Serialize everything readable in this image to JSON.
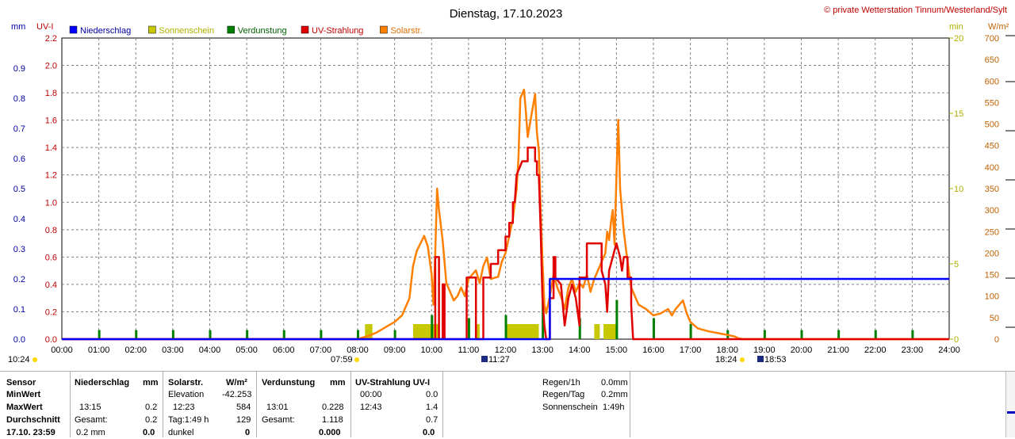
{
  "header": {
    "title": "Dienstag, 17.10.2023",
    "copyright": "© private Wetterstation Tinnum/Westerland/Sylt"
  },
  "axes": {
    "left_unit_mm": "mm",
    "left_unit_uv": "UV-I",
    "right_unit_min": "min",
    "right_unit_wm2": "W/m²"
  },
  "colors": {
    "niederschlag": "#0000ff",
    "sonnenschein": "#c8c800",
    "verdunstung": "#008000",
    "uv": "#e00000",
    "solar": "#ff8000",
    "grid": "#808080",
    "mm_axis": "#0000a0",
    "uv_axis": "#c00000",
    "min_axis": "#b0b000",
    "wm2_axis": "#c06000"
  },
  "legend": [
    {
      "key": "niederschlag",
      "label": "Niederschlag"
    },
    {
      "key": "sonnenschein",
      "label": "Sonnenschein"
    },
    {
      "key": "verdunstung",
      "label": "Verdunstung"
    },
    {
      "key": "uv",
      "label": "UV-Strahlung"
    },
    {
      "key": "solar",
      "label": "Solarstr."
    }
  ],
  "sun_markers": {
    "sunrise_left": "10:24",
    "sunrise": "07:59",
    "noon": "11:27",
    "sunset": "18:24",
    "moon": "18:53"
  },
  "chart_data": {
    "type": "line",
    "x_range_hours": [
      0,
      24
    ],
    "x_ticks": [
      "00:00",
      "01:00",
      "02:00",
      "03:00",
      "04:00",
      "05:00",
      "06:00",
      "07:00",
      "08:00",
      "09:00",
      "10:00",
      "11:00",
      "12:00",
      "13:00",
      "14:00",
      "15:00",
      "16:00",
      "17:00",
      "18:00",
      "19:00",
      "20:00",
      "21:00",
      "22:00",
      "23:00",
      "24:00"
    ],
    "y_axes": {
      "mm": {
        "range": [
          0,
          1.0
        ],
        "ticks": [
          "0.0",
          "0.1",
          "0.2",
          "0.3",
          "0.4",
          "0.5",
          "0.6",
          "0.7",
          "0.8",
          "0.9"
        ]
      },
      "uv": {
        "range": [
          0,
          2.2
        ],
        "ticks": [
          "0.0",
          "0.2",
          "0.4",
          "0.6",
          "0.8",
          "1.0",
          "1.2",
          "1.4",
          "1.6",
          "1.8",
          "2.0",
          "2.2"
        ]
      },
      "min": {
        "range": [
          0,
          20
        ],
        "ticks": [
          "0",
          "5",
          "10",
          "15",
          "20"
        ]
      },
      "wm2": {
        "range": [
          0,
          700
        ],
        "ticks": [
          "0",
          "50",
          "100",
          "150",
          "200",
          "250",
          "300",
          "350",
          "400",
          "450",
          "500",
          "550",
          "600",
          "650",
          "700"
        ]
      }
    },
    "grid": true,
    "legend_position": "top-left",
    "series": [
      {
        "name": "Niederschlag",
        "axis": "mm",
        "unit": "mm",
        "points": [
          [
            0,
            0
          ],
          [
            13.2,
            0
          ],
          [
            13.2,
            0.2
          ],
          [
            24,
            0.2
          ]
        ]
      },
      {
        "name": "UV-Strahlung",
        "axis": "uv",
        "unit": "UV-I",
        "points": [
          [
            0,
            0
          ],
          [
            10.1,
            0
          ],
          [
            10.1,
            0.6
          ],
          [
            10.2,
            0.6
          ],
          [
            10.2,
            0
          ],
          [
            10.3,
            0
          ],
          [
            10.3,
            0.4
          ],
          [
            10.35,
            0.4
          ],
          [
            10.35,
            0
          ],
          [
            10.95,
            0
          ],
          [
            10.95,
            0.45
          ],
          [
            11.2,
            0.45
          ],
          [
            11.2,
            0
          ],
          [
            11.4,
            0
          ],
          [
            11.4,
            0.45
          ],
          [
            11.6,
            0.45
          ],
          [
            11.6,
            0.55
          ],
          [
            11.8,
            0.55
          ],
          [
            11.8,
            0.65
          ],
          [
            12.0,
            0.65
          ],
          [
            12.0,
            0.75
          ],
          [
            12.1,
            0.75
          ],
          [
            12.1,
            0.85
          ],
          [
            12.2,
            0.85
          ],
          [
            12.2,
            1.0
          ],
          [
            12.25,
            1.0
          ],
          [
            12.3,
            1.2
          ],
          [
            12.45,
            1.3
          ],
          [
            12.45,
            1.3
          ],
          [
            12.6,
            1.3
          ],
          [
            12.6,
            1.4
          ],
          [
            12.8,
            1.4
          ],
          [
            12.8,
            1.3
          ],
          [
            12.85,
            1.3
          ],
          [
            12.85,
            1.2
          ],
          [
            12.9,
            1.2
          ],
          [
            12.95,
            0.8
          ],
          [
            13.0,
            0.3
          ],
          [
            13.05,
            0.1
          ],
          [
            13.1,
            0
          ],
          [
            13.2,
            0
          ],
          [
            13.2,
            0.3
          ],
          [
            13.3,
            0.3
          ],
          [
            13.3,
            0.6
          ],
          [
            13.35,
            0.6
          ],
          [
            13.35,
            0.45
          ],
          [
            13.5,
            0.4
          ],
          [
            13.6,
            0.1
          ],
          [
            13.7,
            0.3
          ],
          [
            13.8,
            0.4
          ],
          [
            13.9,
            0.3
          ],
          [
            14.0,
            0.1
          ],
          [
            14.0,
            0.45
          ],
          [
            14.2,
            0.45
          ],
          [
            14.2,
            0.7
          ],
          [
            14.6,
            0.7
          ],
          [
            14.6,
            0.5
          ],
          [
            14.7,
            0.4
          ],
          [
            14.75,
            0.2
          ],
          [
            14.8,
            0.5
          ],
          [
            14.9,
            0.6
          ],
          [
            15.0,
            0.7
          ],
          [
            15.1,
            0.6
          ],
          [
            15.15,
            0.5
          ],
          [
            15.2,
            0.6
          ],
          [
            15.3,
            0.6
          ],
          [
            15.3,
            0.45
          ],
          [
            15.4,
            0.45
          ],
          [
            15.4,
            0.25
          ],
          [
            15.45,
            0
          ],
          [
            24,
            0
          ]
        ]
      },
      {
        "name": "Solarstr.",
        "axis": "wm2",
        "unit": "W/m²",
        "points": [
          [
            0,
            0
          ],
          [
            8.0,
            0
          ],
          [
            8.3,
            8
          ],
          [
            8.5,
            15
          ],
          [
            8.8,
            30
          ],
          [
            9.0,
            40
          ],
          [
            9.2,
            55
          ],
          [
            9.4,
            95
          ],
          [
            9.5,
            170
          ],
          [
            9.6,
            205
          ],
          [
            9.8,
            240
          ],
          [
            9.9,
            215
          ],
          [
            10.0,
            150
          ],
          [
            10.05,
            80
          ],
          [
            10.1,
            200
          ],
          [
            10.15,
            350
          ],
          [
            10.2,
            300
          ],
          [
            10.3,
            230
          ],
          [
            10.4,
            130
          ],
          [
            10.5,
            110
          ],
          [
            10.6,
            90
          ],
          [
            10.7,
            100
          ],
          [
            10.8,
            120
          ],
          [
            10.9,
            100
          ],
          [
            11.0,
            140
          ],
          [
            11.1,
            150
          ],
          [
            11.2,
            160
          ],
          [
            11.3,
            130
          ],
          [
            11.4,
            170
          ],
          [
            11.5,
            190
          ],
          [
            11.6,
            140
          ],
          [
            11.8,
            145
          ],
          [
            11.9,
            180
          ],
          [
            12.0,
            200
          ],
          [
            12.1,
            240
          ],
          [
            12.2,
            280
          ],
          [
            12.3,
            350
          ],
          [
            12.35,
            420
          ],
          [
            12.4,
            560
          ],
          [
            12.5,
            580
          ],
          [
            12.55,
            530
          ],
          [
            12.6,
            470
          ],
          [
            12.7,
            520
          ],
          [
            12.8,
            570
          ],
          [
            12.85,
            480
          ],
          [
            12.9,
            440
          ],
          [
            12.95,
            300
          ],
          [
            13.0,
            180
          ],
          [
            13.05,
            80
          ],
          [
            13.1,
            60
          ],
          [
            13.2,
            100
          ],
          [
            13.3,
            150
          ],
          [
            13.4,
            120
          ],
          [
            13.5,
            100
          ],
          [
            13.6,
            70
          ],
          [
            13.7,
            120
          ],
          [
            13.8,
            140
          ],
          [
            13.9,
            110
          ],
          [
            14.0,
            130
          ],
          [
            14.1,
            120
          ],
          [
            14.2,
            150
          ],
          [
            14.3,
            110
          ],
          [
            14.4,
            140
          ],
          [
            14.5,
            160
          ],
          [
            14.6,
            180
          ],
          [
            14.7,
            200
          ],
          [
            14.75,
            250
          ],
          [
            14.8,
            230
          ],
          [
            14.85,
            270
          ],
          [
            14.9,
            300
          ],
          [
            14.95,
            220
          ],
          [
            15.0,
            380
          ],
          [
            15.05,
            510
          ],
          [
            15.1,
            350
          ],
          [
            15.2,
            250
          ],
          [
            15.3,
            180
          ],
          [
            15.4,
            120
          ],
          [
            15.6,
            80
          ],
          [
            15.8,
            70
          ],
          [
            16.0,
            55
          ],
          [
            16.2,
            60
          ],
          [
            16.4,
            70
          ],
          [
            16.5,
            55
          ],
          [
            16.6,
            70
          ],
          [
            16.7,
            80
          ],
          [
            16.8,
            90
          ],
          [
            16.9,
            60
          ],
          [
            17.0,
            40
          ],
          [
            17.2,
            25
          ],
          [
            17.5,
            18
          ],
          [
            18.0,
            10
          ],
          [
            18.2,
            6
          ],
          [
            18.3,
            2
          ],
          [
            18.4,
            0
          ],
          [
            24,
            0
          ]
        ]
      },
      {
        "name": "Sonnenschein",
        "axis": "min",
        "unit": "min",
        "bars": [
          [
            8.2,
            8.3,
            1
          ],
          [
            8.3,
            8.4,
            1
          ],
          [
            9.5,
            10.2,
            1
          ],
          [
            11.2,
            11.3,
            1
          ],
          [
            12.0,
            12.9,
            1
          ],
          [
            14.4,
            14.55,
            1
          ],
          [
            14.65,
            15.0,
            1
          ]
        ]
      },
      {
        "name": "Verdunstung",
        "axis": "mm",
        "unit": "mm",
        "spikes": [
          [
            1.0,
            0.03
          ],
          [
            2.0,
            0.03
          ],
          [
            3.0,
            0.03
          ],
          [
            4.0,
            0.03
          ],
          [
            5.0,
            0.03
          ],
          [
            6.0,
            0.03
          ],
          [
            7.0,
            0.03
          ],
          [
            8.0,
            0.03
          ],
          [
            9.0,
            0.03
          ],
          [
            10.0,
            0.08
          ],
          [
            11.0,
            0.07
          ],
          [
            12.0,
            0.08
          ],
          [
            13.0,
            0.22
          ],
          [
            14.0,
            0.07
          ],
          [
            15.0,
            0.13
          ],
          [
            16.0,
            0.07
          ],
          [
            17.0,
            0.05
          ],
          [
            18.0,
            0.03
          ],
          [
            19.0,
            0.03
          ],
          [
            20.0,
            0.03
          ],
          [
            21.0,
            0.03
          ],
          [
            22.0,
            0.03
          ],
          [
            23.0,
            0.03
          ]
        ]
      }
    ]
  },
  "stats": {
    "cols": {
      "sensor": {
        "head": "Sensor",
        "rows": [
          "MinWert",
          "MaxWert",
          "Durchschnitt",
          "17.10. 23:59"
        ]
      },
      "nied": {
        "head": "Niederschlag",
        "unit": "mm",
        "r1a": "",
        "r1b": "",
        "r2a": "13:15",
        "r2b": "0.2",
        "r3a": "Gesamt:",
        "r3b": "0.2",
        "r4a": "0.2 mm",
        "r4b": "0.0"
      },
      "solar": {
        "head": "Solarstr.",
        "unit": "W/m²",
        "r1a": "Elevation",
        "r1b": "-42.253",
        "r2a": "12:23",
        "r2b": "584",
        "r3a": "Tag:1:49 h",
        "r3b": "129",
        "r4a": "dunkel",
        "r4b": "0"
      },
      "verd": {
        "head": "Verdunstung",
        "unit": "mm",
        "r1a": "",
        "r1b": "",
        "r2a": "13:01",
        "r2b": "0.228",
        "r3a": "Gesamt:",
        "r3b": "1.118",
        "r4a": "",
        "r4b": "0.000"
      },
      "uv": {
        "head": "UV-Strahlung UV-I",
        "r1a": "00:00",
        "r1b": "0.0",
        "r2a": "12:43",
        "r2b": "1.4",
        "r3a": "",
        "r3b": "0.7",
        "r4a": "",
        "r4b": "0.0"
      }
    },
    "extra": [
      {
        "label": "Regen/1h",
        "value": "0.0mm"
      },
      {
        "label": "Regen/Tag",
        "value": "0.2mm"
      },
      {
        "label": "Sonnenschein",
        "value": "1:49h"
      }
    ]
  }
}
